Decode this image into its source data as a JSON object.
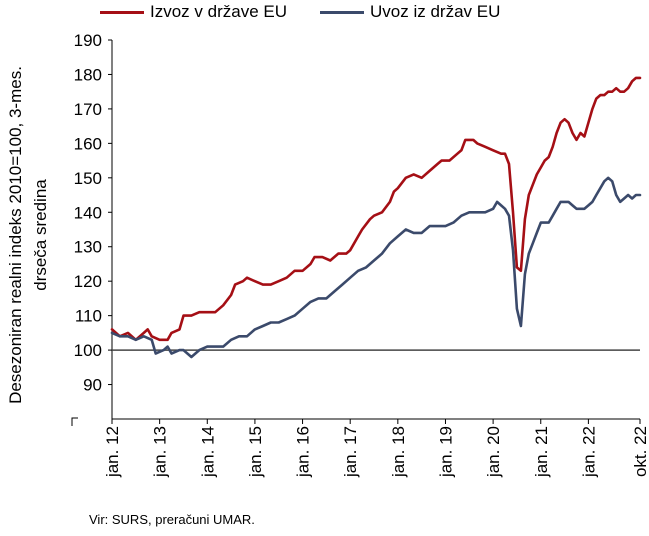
{
  "legend": {
    "export_label": "Izvoz v države EU",
    "import_label": "Uvoz iz držav EU"
  },
  "ylabel_line1": "Desezoniran realni indeks 2010=100, 3-mes.",
  "ylabel_line2": "drseča sredina",
  "source": "Vir: SURS, preračuni UMAR.",
  "chart_data": {
    "type": "line",
    "ylim": [
      80,
      190
    ],
    "yticks": [
      90,
      100,
      110,
      120,
      130,
      140,
      150,
      160,
      170,
      180,
      190
    ],
    "reference_line": 100,
    "x_tick_labels": [
      "jan. 12",
      "jan. 13",
      "jan. 14",
      "jan. 15",
      "jan. 16",
      "jan. 17",
      "jan. 18",
      "jan. 19",
      "jan. 20",
      "jan. 21",
      "jan. 22",
      "okt. 22"
    ],
    "x_start": "jan. 12",
    "x_end": "okt. 22",
    "colors": {
      "export": "#a50f15",
      "import": "#3b4a6b"
    },
    "series": [
      {
        "name": "Izvoz v države EU",
        "points": [
          [
            0,
            106
          ],
          [
            2,
            104
          ],
          [
            4,
            105
          ],
          [
            6,
            103
          ],
          [
            8,
            105
          ],
          [
            9,
            106
          ],
          [
            10,
            104
          ],
          [
            12,
            103
          ],
          [
            14,
            103
          ],
          [
            15,
            105
          ],
          [
            17,
            106
          ],
          [
            18,
            110
          ],
          [
            20,
            110
          ],
          [
            22,
            111
          ],
          [
            24,
            111
          ],
          [
            26,
            111
          ],
          [
            28,
            113
          ],
          [
            30,
            116
          ],
          [
            31,
            119
          ],
          [
            33,
            120
          ],
          [
            34,
            121
          ],
          [
            36,
            120
          ],
          [
            38,
            119
          ],
          [
            40,
            119
          ],
          [
            42,
            120
          ],
          [
            44,
            121
          ],
          [
            46,
            123
          ],
          [
            48,
            123
          ],
          [
            50,
            125
          ],
          [
            51,
            127
          ],
          [
            53,
            127
          ],
          [
            55,
            126
          ],
          [
            57,
            128
          ],
          [
            59,
            128
          ],
          [
            60,
            129
          ],
          [
            62,
            133
          ],
          [
            63,
            135
          ],
          [
            65,
            138
          ],
          [
            66,
            139
          ],
          [
            68,
            140
          ],
          [
            70,
            143
          ],
          [
            71,
            146
          ],
          [
            72,
            147
          ],
          [
            74,
            150
          ],
          [
            76,
            151
          ],
          [
            78,
            150
          ],
          [
            80,
            152
          ],
          [
            82,
            154
          ],
          [
            83,
            155
          ],
          [
            85,
            155
          ],
          [
            87,
            157
          ],
          [
            88,
            158
          ],
          [
            89,
            161
          ],
          [
            91,
            161
          ],
          [
            92,
            160
          ],
          [
            94,
            159
          ],
          [
            96,
            158
          ],
          [
            98,
            157
          ],
          [
            99,
            157
          ],
          [
            100,
            154
          ],
          [
            101,
            140
          ],
          [
            102,
            124
          ],
          [
            103,
            123
          ],
          [
            104,
            138
          ],
          [
            105,
            145
          ],
          [
            106,
            148
          ],
          [
            107,
            151
          ],
          [
            108,
            153
          ],
          [
            109,
            155
          ],
          [
            110,
            156
          ],
          [
            111,
            159
          ],
          [
            112,
            163
          ],
          [
            113,
            166
          ],
          [
            114,
            167
          ],
          [
            115,
            166
          ],
          [
            116,
            163
          ],
          [
            117,
            161
          ],
          [
            118,
            163
          ],
          [
            119,
            162
          ],
          [
            120,
            166
          ],
          [
            121,
            170
          ],
          [
            122,
            173
          ],
          [
            123,
            174
          ],
          [
            124,
            174
          ],
          [
            125,
            175
          ],
          [
            126,
            175
          ],
          [
            127,
            176
          ],
          [
            128,
            175
          ],
          [
            129,
            175
          ],
          [
            130,
            176
          ],
          [
            131,
            178
          ],
          [
            132,
            179
          ],
          [
            133,
            179
          ]
        ]
      },
      {
        "name": "Uvoz iz držav EU",
        "points": [
          [
            0,
            105
          ],
          [
            2,
            104
          ],
          [
            4,
            104
          ],
          [
            6,
            103
          ],
          [
            8,
            104
          ],
          [
            10,
            103
          ],
          [
            11,
            99
          ],
          [
            13,
            100
          ],
          [
            14,
            101
          ],
          [
            15,
            99
          ],
          [
            17,
            100
          ],
          [
            18,
            100
          ],
          [
            20,
            98
          ],
          [
            22,
            100
          ],
          [
            24,
            101
          ],
          [
            26,
            101
          ],
          [
            28,
            101
          ],
          [
            30,
            103
          ],
          [
            32,
            104
          ],
          [
            34,
            104
          ],
          [
            36,
            106
          ],
          [
            38,
            107
          ],
          [
            40,
            108
          ],
          [
            42,
            108
          ],
          [
            44,
            109
          ],
          [
            46,
            110
          ],
          [
            48,
            112
          ],
          [
            50,
            114
          ],
          [
            52,
            115
          ],
          [
            54,
            115
          ],
          [
            56,
            117
          ],
          [
            58,
            119
          ],
          [
            60,
            121
          ],
          [
            62,
            123
          ],
          [
            64,
            124
          ],
          [
            66,
            126
          ],
          [
            68,
            128
          ],
          [
            70,
            131
          ],
          [
            72,
            133
          ],
          [
            74,
            135
          ],
          [
            76,
            134
          ],
          [
            78,
            134
          ],
          [
            80,
            136
          ],
          [
            82,
            136
          ],
          [
            84,
            136
          ],
          [
            86,
            137
          ],
          [
            88,
            139
          ],
          [
            90,
            140
          ],
          [
            92,
            140
          ],
          [
            94,
            140
          ],
          [
            96,
            141
          ],
          [
            97,
            143
          ],
          [
            98,
            142
          ],
          [
            99,
            141
          ],
          [
            100,
            139
          ],
          [
            101,
            129
          ],
          [
            102,
            112
          ],
          [
            103,
            107
          ],
          [
            104,
            122
          ],
          [
            105,
            128
          ],
          [
            106,
            131
          ],
          [
            107,
            134
          ],
          [
            108,
            137
          ],
          [
            109,
            137
          ],
          [
            110,
            137
          ],
          [
            111,
            139
          ],
          [
            112,
            141
          ],
          [
            113,
            143
          ],
          [
            114,
            143
          ],
          [
            115,
            143
          ],
          [
            116,
            142
          ],
          [
            117,
            141
          ],
          [
            118,
            141
          ],
          [
            119,
            141
          ],
          [
            120,
            142
          ],
          [
            121,
            143
          ],
          [
            122,
            145
          ],
          [
            123,
            147
          ],
          [
            124,
            149
          ],
          [
            125,
            150
          ],
          [
            126,
            149
          ],
          [
            127,
            145
          ],
          [
            128,
            143
          ],
          [
            129,
            144
          ],
          [
            130,
            145
          ],
          [
            131,
            144
          ],
          [
            132,
            145
          ],
          [
            133,
            145
          ]
        ]
      }
    ]
  }
}
